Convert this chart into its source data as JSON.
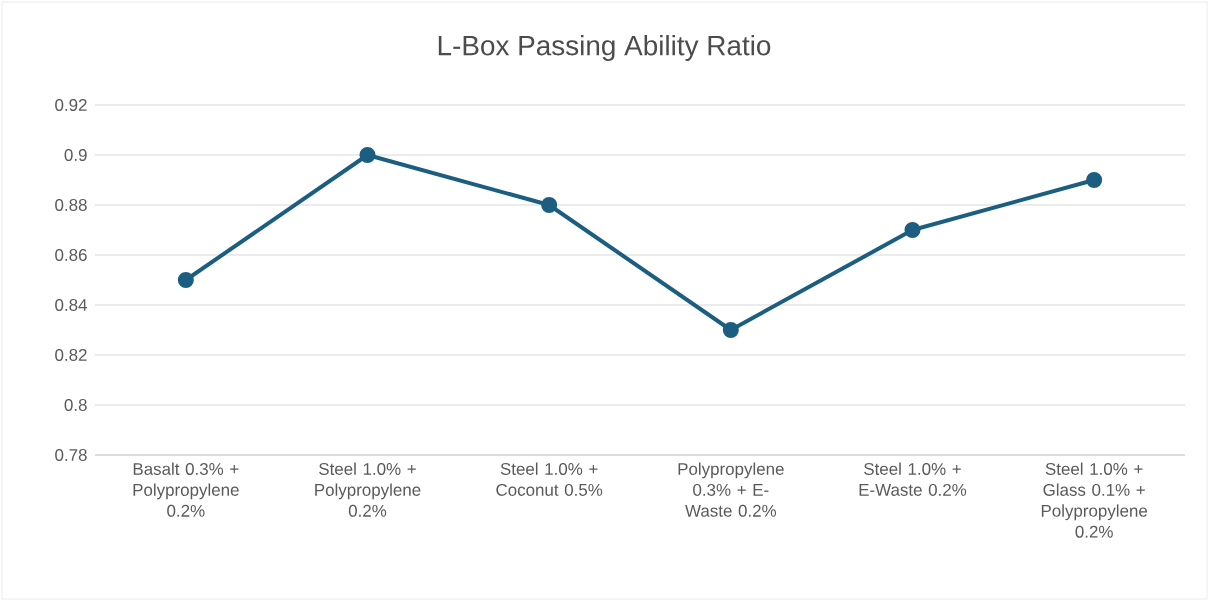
{
  "chart_data": {
    "type": "line",
    "title": "L-Box Passing Ability Ratio",
    "categories": [
      "Basalt 0.3% + Polypropylene 0.2%",
      "Steel 1.0% + Polypropylene 0.2%",
      "Steel 1.0% + Coconut 0.5%",
      "Polypropylene 0.3% + E-Waste 0.2%",
      "Steel 1.0% + E-Waste 0.2%",
      "Steel 1.0% + Glass 0.1% + Polypropylene 0.2%"
    ],
    "values": [
      0.85,
      0.9,
      0.88,
      0.83,
      0.87,
      0.89
    ],
    "color": "#1b5e80",
    "ylim": [
      0.78,
      0.92
    ],
    "yticks": [
      0.78,
      0.8,
      0.82,
      0.84,
      0.86,
      0.88,
      0.9,
      0.92
    ],
    "grid": "y",
    "marker": "circle",
    "line_style": "solid"
  }
}
